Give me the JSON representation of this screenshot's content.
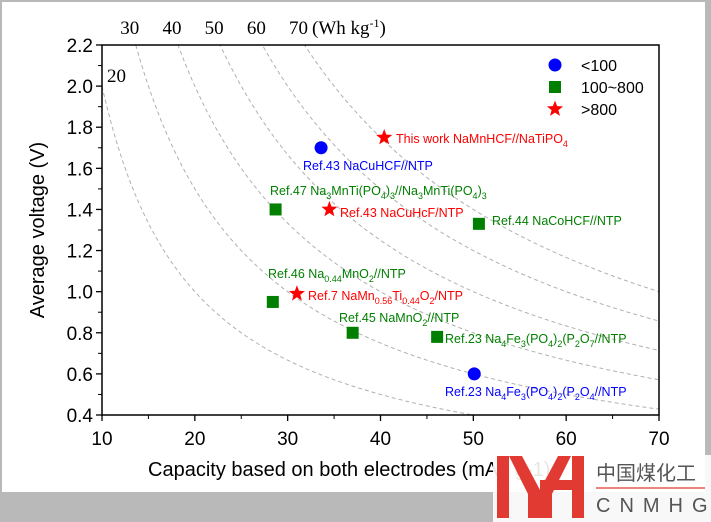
{
  "chart_data": {
    "type": "scatter",
    "xlabel": "Capacity based on both electrodes (mAh g-1)",
    "ylabel": "Average voltage (V)",
    "xlim": [
      10,
      70
    ],
    "ylim": [
      0.4,
      2.2
    ],
    "xticks": [
      "10",
      "20",
      "30",
      "40",
      "50",
      "60",
      "70"
    ],
    "yticks": [
      "0.4",
      "0.6",
      "0.8",
      "1.0",
      "1.2",
      "1.4",
      "1.6",
      "1.8",
      "2.0",
      "2.2"
    ],
    "energy_contours": {
      "values": [
        20,
        30,
        40,
        50,
        60,
        70
      ],
      "top_labels": [
        "30",
        "40",
        "50",
        "60",
        "70"
      ],
      "left_label": "20",
      "unit_prefix": "(Wh kg",
      "unit_sup": "-1",
      "unit_suffix": ")",
      "color": "#b0b0b0"
    },
    "legend": {
      "placement": "top-right",
      "entries": [
        {
          "label": "<100",
          "marker": "circle",
          "color": "#0000ff"
        },
        {
          "label": "100~800",
          "marker": "square",
          "color": "#007f00"
        },
        {
          "label": ">800",
          "marker": "star",
          "color": "#ff0000"
        }
      ]
    },
    "points": [
      {
        "x": 33.6,
        "y": 1.7,
        "group": "<100",
        "marker": "circle",
        "color": "#0000ff",
        "label": [
          {
            "t": "Ref.43 NaCuHCF//NTP"
          }
        ]
      },
      {
        "x": 40.4,
        "y": 1.75,
        "group": ">800",
        "marker": "star",
        "color": "#ff0000",
        "label": [
          {
            "t": "This work NaMnHCF//NaTiPO"
          },
          {
            "s": "4"
          }
        ]
      },
      {
        "x": 28.7,
        "y": 1.4,
        "group": "100~800",
        "marker": "square",
        "color": "#007f00",
        "label": [
          {
            "t": "Ref.47 Na"
          },
          {
            "s": "3"
          },
          {
            "t": "MnTi(PO"
          },
          {
            "s": "4"
          },
          {
            "t": ")"
          },
          {
            "s": "3"
          },
          {
            "t": "//Na"
          },
          {
            "s": "3"
          },
          {
            "t": "MnTi(PO"
          },
          {
            "s": "4"
          },
          {
            "t": ")"
          },
          {
            "s": "3"
          }
        ]
      },
      {
        "x": 34.5,
        "y": 1.4,
        "group": ">800",
        "marker": "star",
        "color": "#ff0000",
        "label": [
          {
            "t": "Ref.43 NaCuHcF/NTP"
          }
        ]
      },
      {
        "x": 50.6,
        "y": 1.33,
        "group": "100~800",
        "marker": "square",
        "color": "#007f00",
        "label": [
          {
            "t": "Ref.44 NaCoHCF//NTP"
          }
        ]
      },
      {
        "x": 28.4,
        "y": 0.95,
        "group": "100~800",
        "marker": "square",
        "color": "#007f00",
        "label": [
          {
            "t": "Ref.46 Na"
          },
          {
            "s": "0.44"
          },
          {
            "t": "MnO"
          },
          {
            "s": "2"
          },
          {
            "t": "//NTP"
          }
        ]
      },
      {
        "x": 31.0,
        "y": 0.99,
        "group": ">800",
        "marker": "star",
        "color": "#ff0000",
        "label": [
          {
            "t": "Ref.7 NaMn"
          },
          {
            "s": "0.56"
          },
          {
            "t": "Ti"
          },
          {
            "s": "0.44"
          },
          {
            "t": "O"
          },
          {
            "s": "2"
          },
          {
            "t": "/NTP"
          }
        ]
      },
      {
        "x": 37.0,
        "y": 0.8,
        "group": "100~800",
        "marker": "square",
        "color": "#007f00",
        "label": [
          {
            "t": "Ref.45 NaMnO"
          },
          {
            "s": "2"
          },
          {
            "t": "//NTP"
          }
        ]
      },
      {
        "x": 46.1,
        "y": 0.78,
        "group": "100~800",
        "marker": "square",
        "color": "#007f00",
        "label": [
          {
            "t": "Ref.23 Na"
          },
          {
            "s": "4"
          },
          {
            "t": "Fe"
          },
          {
            "s": "3"
          },
          {
            "t": "(PO"
          },
          {
            "s": "4"
          },
          {
            "t": ")"
          },
          {
            "s": "2"
          },
          {
            "t": "(P"
          },
          {
            "s": "2"
          },
          {
            "t": "O"
          },
          {
            "s": "7"
          },
          {
            "t": "//NTP"
          }
        ]
      },
      {
        "x": 50.1,
        "y": 0.6,
        "group": "<100",
        "marker": "circle",
        "color": "#0000ff",
        "label": [
          {
            "t": "Ref.23 Na"
          },
          {
            "s": "4"
          },
          {
            "t": "Fe"
          },
          {
            "s": "3"
          },
          {
            "t": "(PO"
          },
          {
            "s": "4"
          },
          {
            "t": ")"
          },
          {
            "s": "2"
          },
          {
            "t": "(P"
          },
          {
            "s": "2"
          },
          {
            "t": "O"
          },
          {
            "s": "4"
          },
          {
            "t": "//NTP"
          }
        ]
      }
    ]
  },
  "watermark": {
    "cn": "中国煤化工",
    "en": "CNMHG",
    "color": "#e03a32"
  }
}
